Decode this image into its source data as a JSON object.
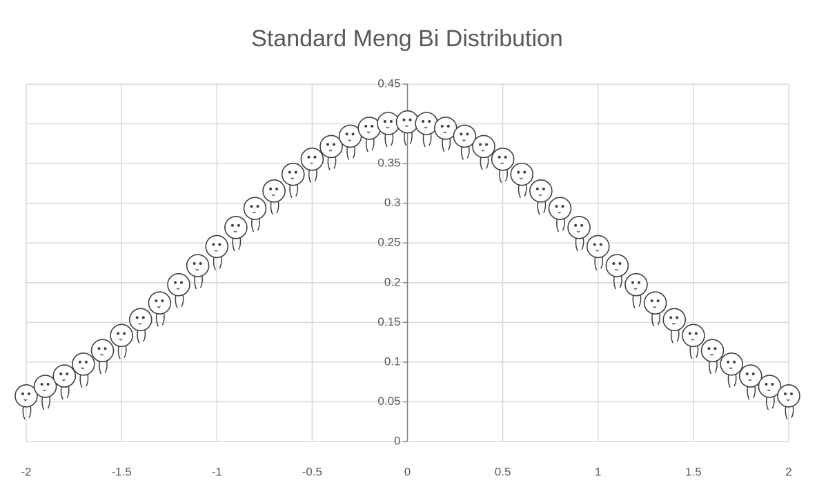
{
  "chart_data": {
    "type": "scatter",
    "title": "Standard Meng Bi Distribution",
    "x": [
      -2,
      -1.9,
      -1.8,
      -1.7,
      -1.6,
      -1.5,
      -1.4,
      -1.3,
      -1.2,
      -1.1,
      -1,
      -0.9,
      -0.8,
      -0.7,
      -0.6,
      -0.5,
      -0.4,
      -0.3,
      -0.2,
      -0.1,
      0,
      0.1,
      0.2,
      0.3,
      0.4,
      0.5,
      0.6,
      0.7,
      0.8,
      0.9,
      1,
      1.1,
      1.2,
      1.3,
      1.4,
      1.5,
      1.6,
      1.7,
      1.8,
      1.9,
      2
    ],
    "values": [
      0.054,
      0.066,
      0.079,
      0.094,
      0.111,
      0.13,
      0.15,
      0.171,
      0.194,
      0.218,
      0.242,
      0.266,
      0.29,
      0.312,
      0.333,
      0.352,
      0.368,
      0.381,
      0.391,
      0.397,
      0.399,
      0.397,
      0.391,
      0.381,
      0.368,
      0.352,
      0.333,
      0.312,
      0.29,
      0.266,
      0.242,
      0.218,
      0.194,
      0.171,
      0.15,
      0.13,
      0.111,
      0.094,
      0.079,
      0.066,
      0.054
    ],
    "color": "#404040",
    "xlim": [
      -2,
      2
    ],
    "xticks": [
      -2,
      -1.5,
      -1,
      -0.5,
      0,
      0.5,
      1,
      1.5,
      2
    ],
    "ylim": [
      0,
      0.45
    ],
    "yticks": [
      0,
      0.05,
      0.1,
      0.15,
      0.2,
      0.25,
      0.3,
      0.35,
      0.4,
      0.45
    ],
    "grid": true
  }
}
